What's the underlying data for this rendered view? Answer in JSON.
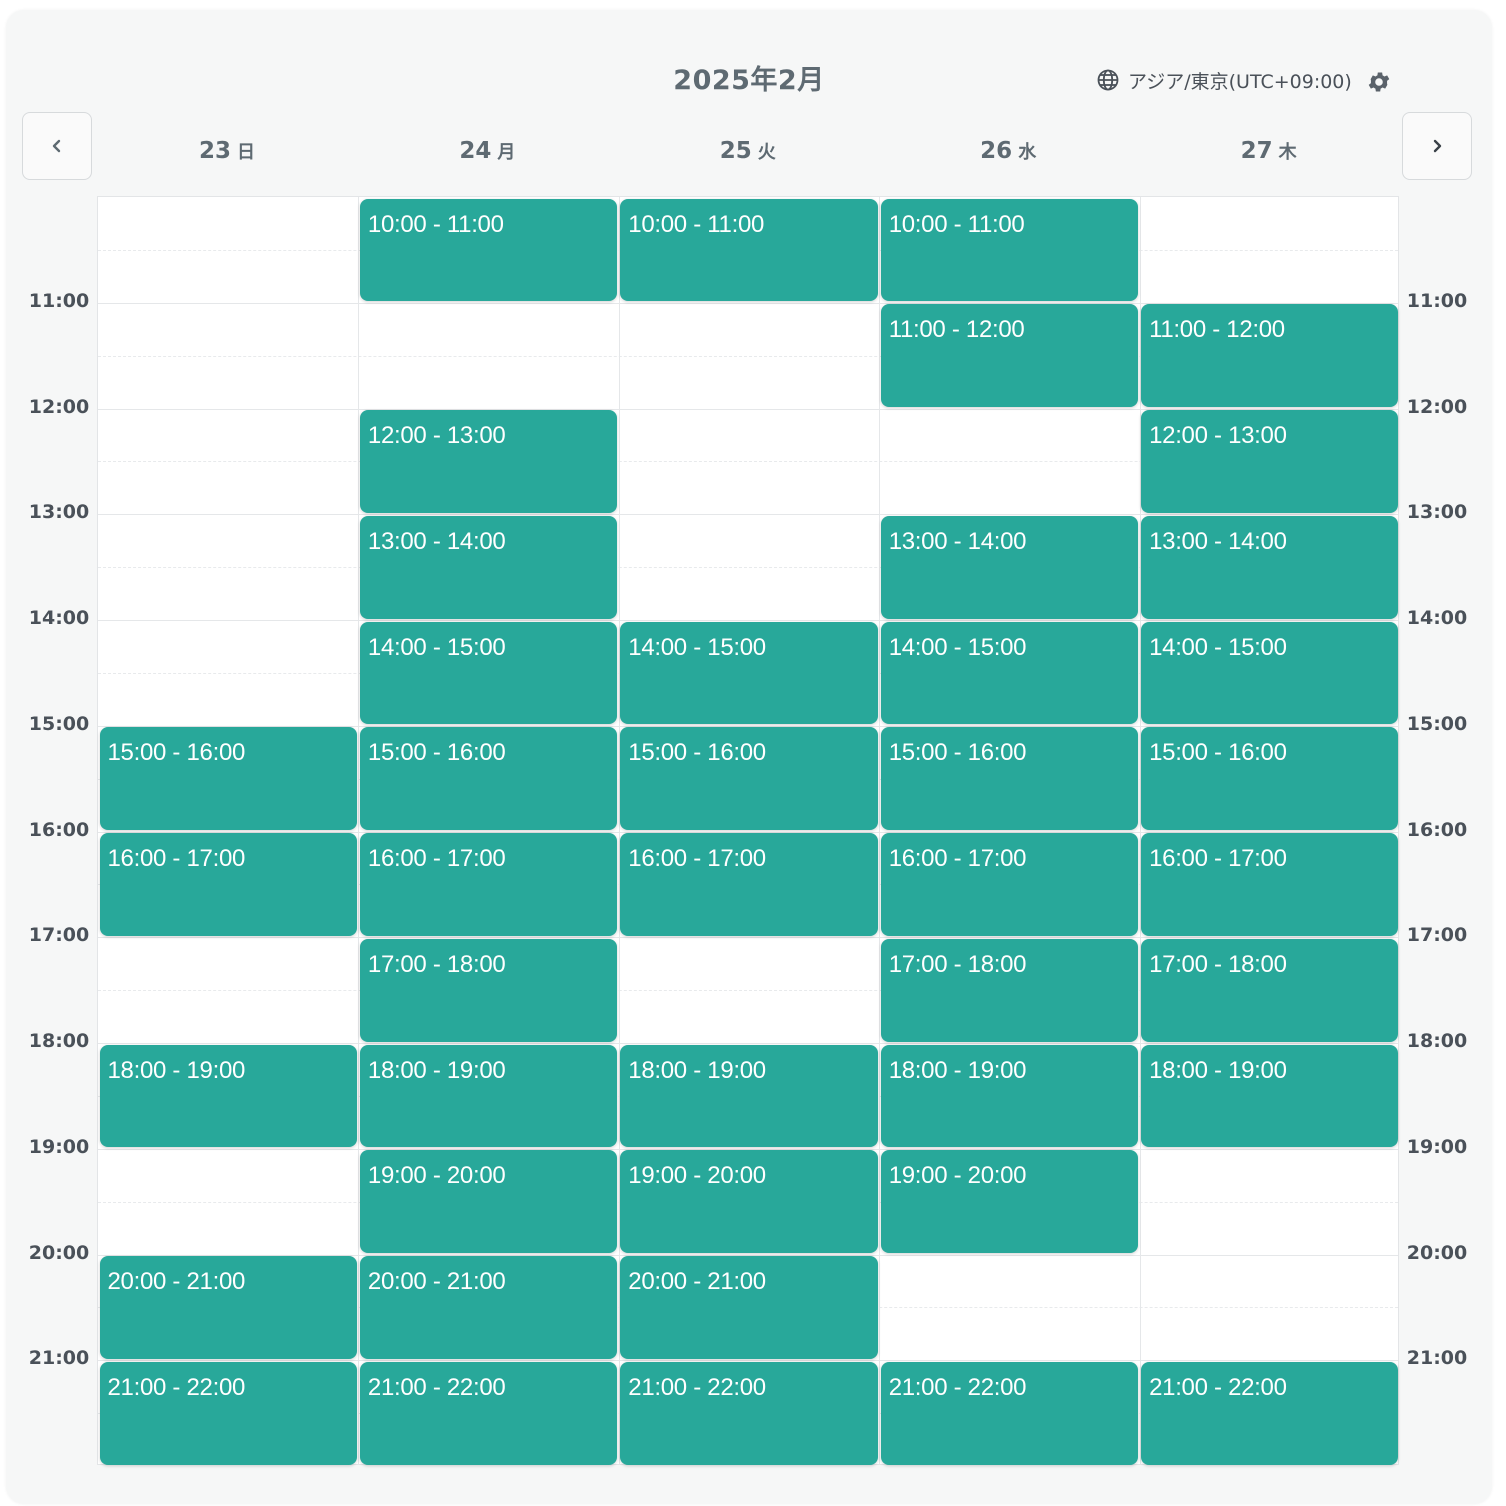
{
  "header": {
    "month_title": "2025年2月",
    "timezone_label": "アジア/東京(UTC+09:00)",
    "icons": {
      "timezone": "globe-icon",
      "settings": "gear-icon",
      "prev": "chevron-left-icon",
      "next": "chevron-right-icon"
    }
  },
  "days": [
    {
      "num": "23",
      "name": "日"
    },
    {
      "num": "24",
      "name": "月"
    },
    {
      "num": "25",
      "name": "火"
    },
    {
      "num": "26",
      "name": "水"
    },
    {
      "num": "27",
      "name": "木"
    }
  ],
  "time_labels": [
    "11:00",
    "12:00",
    "13:00",
    "14:00",
    "15:00",
    "16:00",
    "17:00",
    "18:00",
    "19:00",
    "20:00",
    "21:00"
  ],
  "grid_start_hour": 10,
  "grid_end_hour": 22,
  "colors": {
    "slot": "#28a89a",
    "slot_text": "#ffffff",
    "label": "#5e6a72"
  },
  "slots": [
    [
      "15:00 - 16:00",
      "16:00 - 17:00",
      "18:00 - 19:00",
      "20:00 - 21:00",
      "21:00 - 22:00"
    ],
    [
      "10:00 - 11:00",
      "12:00 - 13:00",
      "13:00 - 14:00",
      "14:00 - 15:00",
      "15:00 - 16:00",
      "16:00 - 17:00",
      "17:00 - 18:00",
      "18:00 - 19:00",
      "19:00 - 20:00",
      "20:00 - 21:00",
      "21:00 - 22:00"
    ],
    [
      "10:00 - 11:00",
      "14:00 - 15:00",
      "15:00 - 16:00",
      "16:00 - 17:00",
      "18:00 - 19:00",
      "19:00 - 20:00",
      "20:00 - 21:00",
      "21:00 - 22:00"
    ],
    [
      "10:00 - 11:00",
      "11:00 - 12:00",
      "13:00 - 14:00",
      "14:00 - 15:00",
      "15:00 - 16:00",
      "16:00 - 17:00",
      "17:00 - 18:00",
      "18:00 - 19:00",
      "19:00 - 20:00",
      "21:00 - 22:00"
    ],
    [
      "11:00 - 12:00",
      "12:00 - 13:00",
      "13:00 - 14:00",
      "14:00 - 15:00",
      "15:00 - 16:00",
      "16:00 - 17:00",
      "17:00 - 18:00",
      "18:00 - 19:00",
      "21:00 - 22:00"
    ]
  ]
}
